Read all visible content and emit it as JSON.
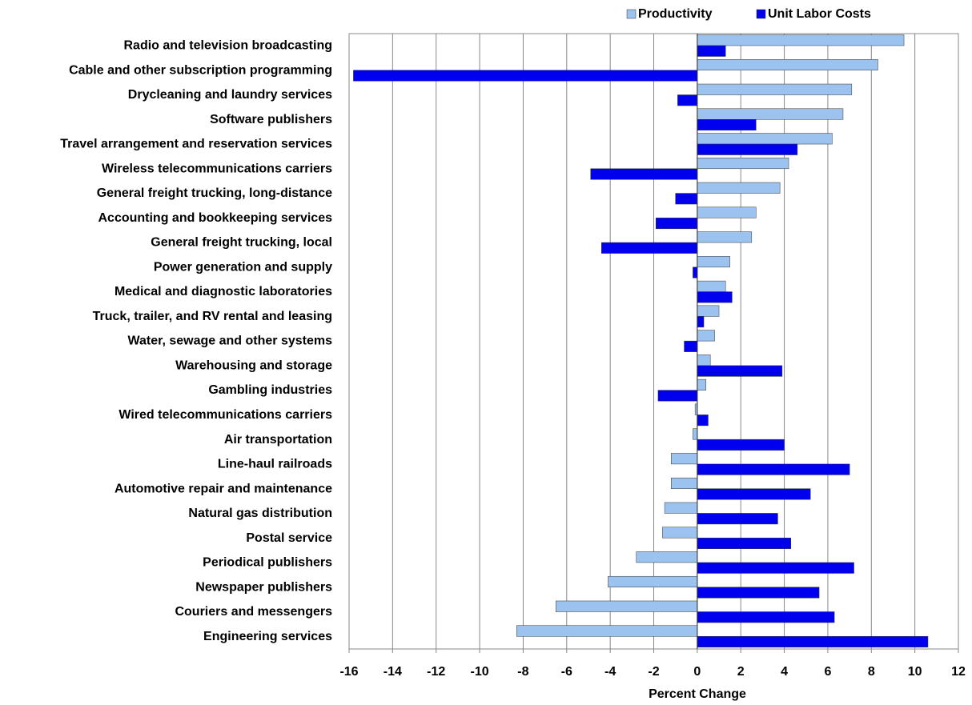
{
  "chart_data": {
    "type": "hbar",
    "xlabel": "Percent Change",
    "categories": [
      "Radio and television broadcasting",
      "Cable and other subscription programming",
      "Drycleaning and laundry services",
      "Software publishers",
      "Travel arrangement and reservation services",
      "Wireless telecommunications carriers",
      "General freight trucking, long-distance",
      "Accounting and bookkeeping services",
      "General freight trucking, local",
      "Power generation and supply",
      "Medical and diagnostic laboratories",
      "Truck, trailer, and RV rental and leasing",
      "Water, sewage and other systems",
      "Warehousing and storage",
      "Gambling industries",
      "Wired telecommunications carriers",
      "Air transportation",
      "Line-haul railroads",
      "Automotive repair and maintenance",
      "Natural gas distribution",
      "Postal service",
      "Periodical publishers",
      "Newspaper publishers",
      "Couriers and messengers",
      "Engineering services"
    ],
    "series": [
      {
        "name": "Productivity",
        "color": "#9cc3f0",
        "values": [
          9.5,
          8.3,
          7.1,
          6.7,
          6.2,
          4.2,
          3.8,
          2.7,
          2.5,
          1.5,
          1.3,
          1.0,
          0.8,
          0.6,
          0.4,
          -0.1,
          -0.2,
          -1.2,
          -1.2,
          -1.5,
          -1.6,
          -2.8,
          -4.1,
          -6.5,
          -8.3
        ]
      },
      {
        "name": "Unit Labor Costs",
        "color": "#0000ee",
        "values": [
          1.3,
          -15.8,
          -0.9,
          2.7,
          4.6,
          -4.9,
          -1.0,
          -1.9,
          -4.4,
          -0.2,
          1.6,
          0.3,
          -0.6,
          3.9,
          -1.8,
          0.5,
          4.0,
          7.0,
          5.2,
          3.7,
          4.3,
          7.2,
          5.6,
          6.3,
          10.6
        ]
      }
    ],
    "xlim": [
      -16,
      12
    ],
    "xticks": [
      -16,
      -14,
      -12,
      -10,
      -8,
      -6,
      -4,
      -2,
      0,
      2,
      4,
      6,
      8,
      10,
      12
    ],
    "grid": true,
    "legend": "top"
  }
}
